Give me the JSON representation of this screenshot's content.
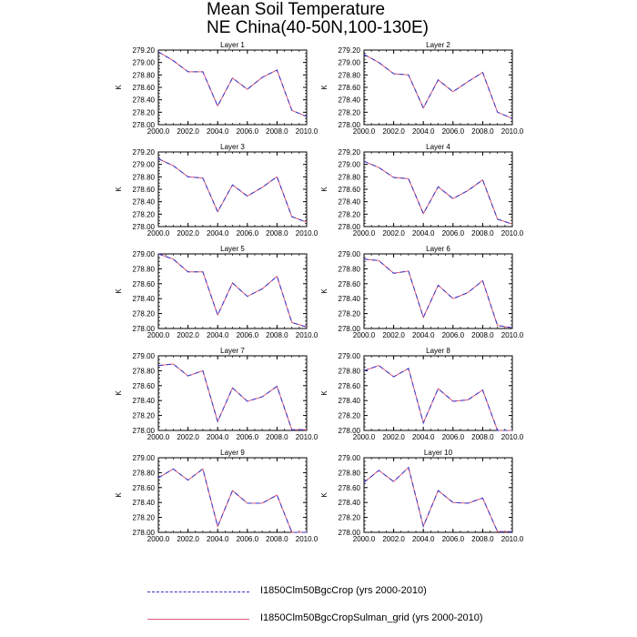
{
  "figure": {
    "title_line1": "Mean Soil Temperature",
    "title_line2": "NE China(40-50N,100-130E)"
  },
  "legend": {
    "items": [
      {
        "label": "I1850Clm50BgcCrop (yrs 2000-2010)",
        "color": "#3333cc",
        "style": "dashed"
      },
      {
        "label": "I1850Clm50BgcCropSulman_grid (yrs 2000-2010)",
        "color": "#e05a7a",
        "style": "solid"
      }
    ]
  },
  "chart_data": [
    {
      "type": "line",
      "title": "Layer 1",
      "ylabel": "K",
      "xlim": [
        2000,
        2010
      ],
      "ylim": [
        278.0,
        279.2
      ],
      "x": [
        2000,
        2001,
        2002,
        2003,
        2004,
        2005,
        2006,
        2007,
        2008,
        2009,
        2010
      ],
      "xticks": [
        "2000.0",
        "2002.0",
        "2004.0",
        "2006.0",
        "2008.0",
        "2010.0"
      ],
      "yticks": [
        "278.00",
        "278.20",
        "278.40",
        "278.60",
        "278.80",
        "279.00",
        "279.20"
      ],
      "series": [
        {
          "name": "I1850Clm50BgcCrop (yrs 2000-2010)",
          "values": [
            279.17,
            279.03,
            278.85,
            278.85,
            278.3,
            278.75,
            278.57,
            278.76,
            278.88,
            278.23,
            278.13
          ]
        },
        {
          "name": "I1850Clm50BgcCropSulman_grid (yrs 2000-2010)",
          "values": [
            279.17,
            279.03,
            278.85,
            278.85,
            278.3,
            278.75,
            278.57,
            278.76,
            278.88,
            278.23,
            278.13
          ]
        }
      ]
    },
    {
      "type": "line",
      "title": "Layer 2",
      "ylabel": "K",
      "xlim": [
        2000,
        2010
      ],
      "ylim": [
        278.0,
        279.2
      ],
      "x": [
        2000,
        2001,
        2002,
        2003,
        2004,
        2005,
        2006,
        2007,
        2008,
        2009,
        2010
      ],
      "xticks": [
        "2000.0",
        "2002.0",
        "2004.0",
        "2006.0",
        "2008.0",
        "2010.0"
      ],
      "yticks": [
        "278.00",
        "278.20",
        "278.40",
        "278.60",
        "278.80",
        "279.00",
        "279.20"
      ],
      "series": [
        {
          "name": "I1850Clm50BgcCrop (yrs 2000-2010)",
          "values": [
            279.13,
            279.0,
            278.82,
            278.8,
            278.27,
            278.72,
            278.53,
            278.69,
            278.84,
            278.2,
            278.1
          ]
        },
        {
          "name": "I1850Clm50BgcCropSulman_grid (yrs 2000-2010)",
          "values": [
            279.13,
            279.0,
            278.82,
            278.8,
            278.27,
            278.72,
            278.53,
            278.69,
            278.84,
            278.2,
            278.1
          ]
        }
      ]
    },
    {
      "type": "line",
      "title": "Layer 3",
      "ylabel": "K",
      "xlim": [
        2000,
        2010
      ],
      "ylim": [
        278.0,
        279.2
      ],
      "x": [
        2000,
        2001,
        2002,
        2003,
        2004,
        2005,
        2006,
        2007,
        2008,
        2009,
        2010
      ],
      "xticks": [
        "2000.0",
        "2002.0",
        "2004.0",
        "2006.0",
        "2008.0",
        "2010.0"
      ],
      "yticks": [
        "278.00",
        "278.20",
        "278.40",
        "278.60",
        "278.80",
        "279.00",
        "279.20"
      ],
      "series": [
        {
          "name": "I1850Clm50BgcCrop (yrs 2000-2010)",
          "values": [
            279.09,
            278.98,
            278.8,
            278.78,
            278.24,
            278.67,
            278.49,
            278.63,
            278.8,
            278.16,
            278.07
          ]
        },
        {
          "name": "I1850Clm50BgcCropSulman_grid (yrs 2000-2010)",
          "values": [
            279.09,
            278.98,
            278.8,
            278.78,
            278.24,
            278.67,
            278.49,
            278.63,
            278.8,
            278.16,
            278.07
          ]
        }
      ]
    },
    {
      "type": "line",
      "title": "Layer 4",
      "ylabel": "K",
      "xlim": [
        2000,
        2010
      ],
      "ylim": [
        278.0,
        279.2
      ],
      "x": [
        2000,
        2001,
        2002,
        2003,
        2004,
        2005,
        2006,
        2007,
        2008,
        2009,
        2010
      ],
      "xticks": [
        "2000.0",
        "2002.0",
        "2004.0",
        "2006.0",
        "2008.0",
        "2010.0"
      ],
      "yticks": [
        "278.00",
        "278.20",
        "278.40",
        "278.60",
        "278.80",
        "279.00",
        "279.20"
      ],
      "series": [
        {
          "name": "I1850Clm50BgcCrop (yrs 2000-2010)",
          "values": [
            279.05,
            278.95,
            278.79,
            278.77,
            278.21,
            278.64,
            278.45,
            278.58,
            278.75,
            278.12,
            278.04
          ]
        },
        {
          "name": "I1850Clm50BgcCropSulman_grid (yrs 2000-2010)",
          "values": [
            279.05,
            278.95,
            278.79,
            278.77,
            278.21,
            278.64,
            278.45,
            278.58,
            278.75,
            278.12,
            278.04
          ]
        }
      ]
    },
    {
      "type": "line",
      "title": "Layer 5",
      "ylabel": "K",
      "xlim": [
        2000,
        2010
      ],
      "ylim": [
        278.0,
        279.0
      ],
      "x": [
        2000,
        2001,
        2002,
        2003,
        2004,
        2005,
        2006,
        2007,
        2008,
        2009,
        2010
      ],
      "xticks": [
        "2000.0",
        "2002.0",
        "2004.0",
        "2006.0",
        "2008.0",
        "2010.0"
      ],
      "yticks": [
        "278.00",
        "278.20",
        "278.40",
        "278.60",
        "278.80",
        "279.00"
      ],
      "series": [
        {
          "name": "I1850Clm50BgcCrop (yrs 2000-2010)",
          "values": [
            279.0,
            278.93,
            278.76,
            278.76,
            278.18,
            278.61,
            278.43,
            278.53,
            278.7,
            278.08,
            278.02
          ]
        },
        {
          "name": "I1850Clm50BgcCropSulman_grid (yrs 2000-2010)",
          "values": [
            279.0,
            278.93,
            278.76,
            278.76,
            278.18,
            278.61,
            278.43,
            278.53,
            278.7,
            278.08,
            278.02
          ]
        }
      ]
    },
    {
      "type": "line",
      "title": "Layer 6",
      "ylabel": "K",
      "xlim": [
        2000,
        2010
      ],
      "ylim": [
        278.0,
        279.0
      ],
      "x": [
        2000,
        2001,
        2002,
        2003,
        2004,
        2005,
        2006,
        2007,
        2008,
        2009,
        2010
      ],
      "xticks": [
        "2000.0",
        "2002.0",
        "2004.0",
        "2006.0",
        "2008.0",
        "2010.0"
      ],
      "yticks": [
        "278.00",
        "278.20",
        "278.40",
        "278.60",
        "278.80",
        "279.00"
      ],
      "series": [
        {
          "name": "I1850Clm50BgcCrop (yrs 2000-2010)",
          "values": [
            278.93,
            278.91,
            278.74,
            278.77,
            278.15,
            278.58,
            278.4,
            278.48,
            278.64,
            278.04,
            278.01
          ]
        },
        {
          "name": "I1850Clm50BgcCropSulman_grid (yrs 2000-2010)",
          "values": [
            278.93,
            278.91,
            278.74,
            278.77,
            278.15,
            278.58,
            278.4,
            278.48,
            278.64,
            278.04,
            278.01
          ]
        }
      ]
    },
    {
      "type": "line",
      "title": "Layer 7",
      "ylabel": "K",
      "xlim": [
        2000,
        2010
      ],
      "ylim": [
        278.0,
        279.0
      ],
      "x": [
        2000,
        2001,
        2002,
        2003,
        2004,
        2005,
        2006,
        2007,
        2008,
        2009,
        2010
      ],
      "xticks": [
        "2000.0",
        "2002.0",
        "2004.0",
        "2006.0",
        "2008.0",
        "2010.0"
      ],
      "yticks": [
        "278.00",
        "278.20",
        "278.40",
        "278.60",
        "278.80",
        "279.00"
      ],
      "series": [
        {
          "name": "I1850Clm50BgcCrop (yrs 2000-2010)",
          "values": [
            278.87,
            278.89,
            278.73,
            278.8,
            278.12,
            278.57,
            278.39,
            278.45,
            278.59,
            278.01,
            278.01
          ]
        },
        {
          "name": "I1850Clm50BgcCropSulman_grid (yrs 2000-2010)",
          "values": [
            278.87,
            278.89,
            278.73,
            278.8,
            278.12,
            278.57,
            278.39,
            278.45,
            278.59,
            278.01,
            278.01
          ]
        }
      ]
    },
    {
      "type": "line",
      "title": "Layer 8",
      "ylabel": "K",
      "xlim": [
        2000,
        2010
      ],
      "ylim": [
        278.0,
        279.0
      ],
      "x": [
        2000,
        2001,
        2002,
        2003,
        2004,
        2005,
        2006,
        2007,
        2008,
        2009,
        2010
      ],
      "xticks": [
        "2000.0",
        "2002.0",
        "2004.0",
        "2006.0",
        "2008.0",
        "2010.0"
      ],
      "yticks": [
        "278.00",
        "278.20",
        "278.40",
        "278.60",
        "278.80",
        "279.00"
      ],
      "series": [
        {
          "name": "I1850Clm50BgcCrop (yrs 2000-2010)",
          "values": [
            278.8,
            278.87,
            278.72,
            278.83,
            278.1,
            278.56,
            278.39,
            278.41,
            278.54,
            278.0,
            278.0
          ]
        },
        {
          "name": "I1850Clm50BgcCropSulman_grid (yrs 2000-2010)",
          "values": [
            278.8,
            278.87,
            278.72,
            278.83,
            278.1,
            278.56,
            278.39,
            278.41,
            278.54,
            278.0,
            278.0
          ]
        }
      ]
    },
    {
      "type": "line",
      "title": "Layer 9",
      "ylabel": "K",
      "xlim": [
        2000,
        2010
      ],
      "ylim": [
        278.0,
        279.0
      ],
      "x": [
        2000,
        2001,
        2002,
        2003,
        2004,
        2005,
        2006,
        2007,
        2008,
        2009,
        2010
      ],
      "xticks": [
        "2000.0",
        "2002.0",
        "2004.0",
        "2006.0",
        "2008.0",
        "2010.0"
      ],
      "yticks": [
        "278.00",
        "278.20",
        "278.40",
        "278.60",
        "278.80",
        "279.00"
      ],
      "series": [
        {
          "name": "I1850Clm50BgcCrop (yrs 2000-2010)",
          "values": [
            278.73,
            278.85,
            278.7,
            278.85,
            278.08,
            278.56,
            278.39,
            278.39,
            278.5,
            278.0,
            278.0
          ]
        },
        {
          "name": "I1850Clm50BgcCropSulman_grid (yrs 2000-2010)",
          "values": [
            278.73,
            278.85,
            278.7,
            278.85,
            278.08,
            278.56,
            278.39,
            278.39,
            278.5,
            278.0,
            278.0
          ]
        }
      ]
    },
    {
      "type": "line",
      "title": "Layer 10",
      "ylabel": "K",
      "xlim": [
        2000,
        2010
      ],
      "ylim": [
        278.0,
        279.0
      ],
      "x": [
        2000,
        2001,
        2002,
        2003,
        2004,
        2005,
        2006,
        2007,
        2008,
        2009,
        2010
      ],
      "xticks": [
        "2000.0",
        "2002.0",
        "2004.0",
        "2006.0",
        "2008.0",
        "2010.0"
      ],
      "yticks": [
        "278.00",
        "278.20",
        "278.40",
        "278.60",
        "278.80",
        "279.00"
      ],
      "series": [
        {
          "name": "I1850Clm50BgcCrop (yrs 2000-2010)",
          "values": [
            278.67,
            278.83,
            278.68,
            278.87,
            278.08,
            278.56,
            278.4,
            278.39,
            278.46,
            278.01,
            278.01
          ]
        },
        {
          "name": "I1850Clm50BgcCropSulman_grid (yrs 2000-2010)",
          "values": [
            278.67,
            278.83,
            278.68,
            278.87,
            278.08,
            278.56,
            278.4,
            278.39,
            278.46,
            278.01,
            278.01
          ]
        }
      ]
    }
  ]
}
